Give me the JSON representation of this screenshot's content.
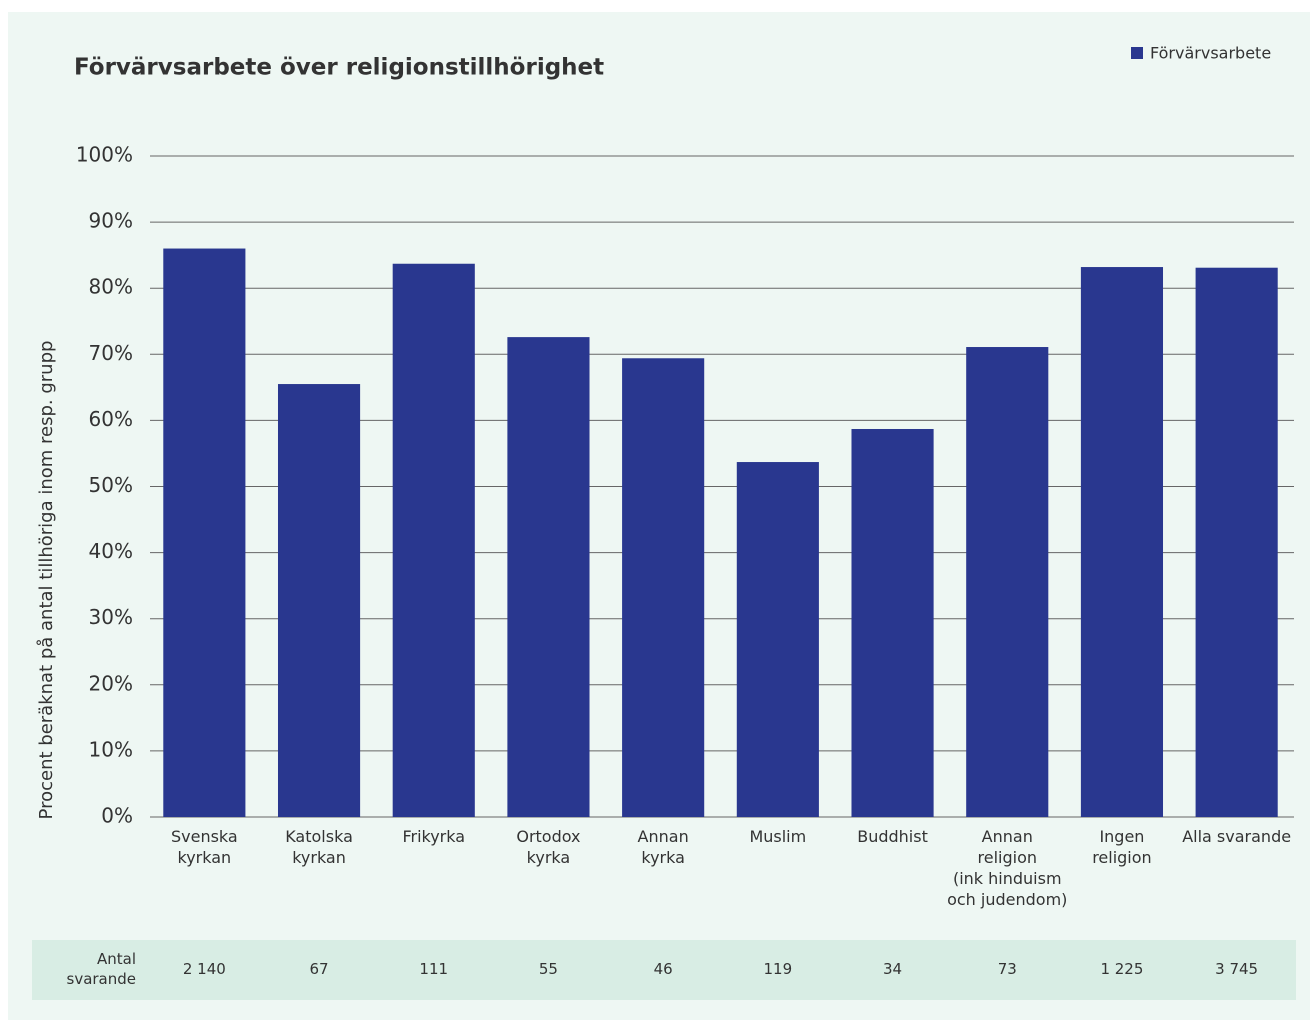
{
  "chart_data": {
    "type": "bar",
    "title": "Förvärvsarbete över religionstillhörighet",
    "ylabel": "Procent beräknat på antal tillhöriga inom resp. grupp",
    "categories": [
      "Svenska\nkyrkan",
      "Katolska\nkyrkan",
      "Frikyrka",
      "Ortodox\nkyrka",
      "Annan\nkyrka",
      "Muslim",
      "Buddhist",
      "Annan\nreligion\n(ink hinduism\noch judendom)",
      "Ingen\nreligion",
      "Alla svarande"
    ],
    "series": [
      {
        "name": "Förvärvsarbete",
        "color": "#29378f",
        "values": [
          86,
          65.5,
          83.7,
          72.6,
          69.4,
          53.7,
          58.7,
          71.1,
          83.2,
          83.1
        ]
      }
    ],
    "ylim": [
      0,
      100
    ],
    "yticks": [
      {
        "value": 0,
        "label": "0%"
      },
      {
        "value": 10,
        "label": "10%"
      },
      {
        "value": 20,
        "label": "20%"
      },
      {
        "value": 30,
        "label": "30%"
      },
      {
        "value": 40,
        "label": "40%"
      },
      {
        "value": 50,
        "label": "50%"
      },
      {
        "value": 60,
        "label": "60%"
      },
      {
        "value": 70,
        "label": "70%"
      },
      {
        "value": 80,
        "label": "80%"
      },
      {
        "value": 90,
        "label": "90%"
      },
      {
        "value": 100,
        "label": "100%"
      }
    ],
    "grid": true,
    "legend": "top-right",
    "table": {
      "label": "Antal\nsvarande",
      "values": [
        "2 140",
        "67",
        "111",
        "55",
        "46",
        "119",
        "34",
        "73",
        "1 225",
        "3 745"
      ]
    }
  }
}
